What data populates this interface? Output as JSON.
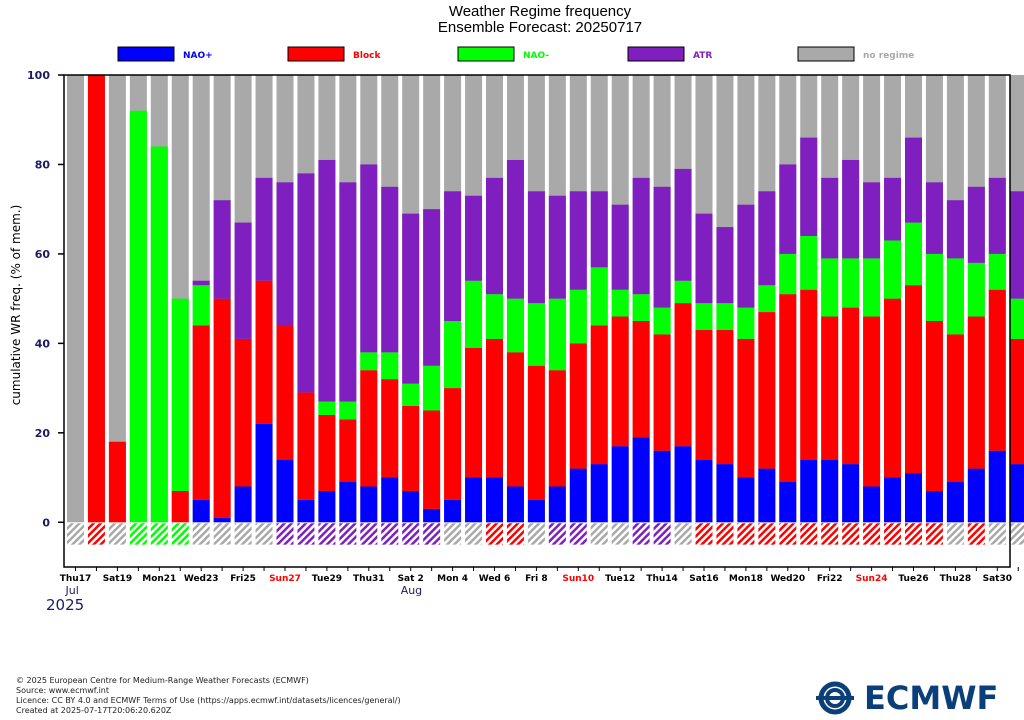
{
  "chart_data": {
    "type": "bar",
    "stacked": true,
    "title": "Weather Regime frequency",
    "subtitle": "Ensemble Forecast: 20250717",
    "ylabel": "cumulative WR freq. (% of mem.)",
    "ylim": [
      -10,
      100
    ],
    "yticks": [
      "0",
      "20",
      "40",
      "60",
      "80",
      "100"
    ],
    "ytick_values": [
      0,
      20,
      40,
      60,
      80,
      100
    ],
    "grid": false,
    "legend_position": "top",
    "series": [
      {
        "name": "NAO+",
        "color": "#0000ff"
      },
      {
        "name": "Block",
        "color": "#ff0000"
      },
      {
        "name": "NAO-",
        "color": "#00ff00"
      },
      {
        "name": "ATR",
        "color": "#7f1fbf"
      },
      {
        "name": "no regime",
        "color": "#a9a9a9"
      }
    ],
    "cumulative": {
      "NAO+": [
        0,
        0,
        0,
        0,
        0,
        0,
        5,
        1,
        8,
        22,
        14,
        5,
        7,
        9,
        8,
        10,
        7,
        3,
        5,
        10,
        10,
        8,
        5,
        8,
        12,
        13,
        17,
        19,
        16,
        17,
        14,
        13,
        10,
        12,
        9,
        14,
        14,
        13,
        8,
        10,
        11,
        7,
        9,
        12,
        16,
        13
      ],
      "Block": [
        0,
        100,
        18,
        0,
        0,
        7,
        44,
        50,
        41,
        54,
        44,
        29,
        24,
        23,
        34,
        32,
        26,
        25,
        30,
        39,
        41,
        38,
        35,
        34,
        40,
        44,
        46,
        45,
        42,
        49,
        43,
        43,
        41,
        47,
        51,
        52,
        46,
        48,
        46,
        50,
        53,
        45,
        42,
        46,
        52,
        41
      ],
      "NAO-": [
        0,
        100,
        18,
        92,
        84,
        50,
        53,
        50,
        41,
        54,
        44,
        29,
        27,
        27,
        38,
        38,
        31,
        35,
        45,
        54,
        51,
        50,
        49,
        50,
        52,
        57,
        52,
        51,
        48,
        54,
        49,
        49,
        48,
        53,
        60,
        64,
        59,
        59,
        59,
        63,
        67,
        60,
        59,
        58,
        60,
        50
      ],
      "ATR": [
        0,
        100,
        18,
        92,
        84,
        50,
        54,
        72,
        67,
        77,
        76,
        78,
        81,
        76,
        80,
        75,
        69,
        70,
        74,
        73,
        77,
        81,
        74,
        73,
        74,
        74,
        71,
        77,
        75,
        79,
        69,
        66,
        71,
        74,
        80,
        86,
        77,
        81,
        76,
        77,
        86,
        76,
        72,
        75,
        77,
        74
      ]
    },
    "dominant_regime": [
      "no regime",
      "Block",
      "no regime",
      "NAO-",
      "NAO-",
      "NAO-",
      "no regime",
      "no regime",
      "no regime",
      "no regime",
      "ATR",
      "ATR",
      "ATR",
      "ATR",
      "ATR",
      "ATR",
      "ATR",
      "ATR",
      "no regime",
      "no regime",
      "Block",
      "Block",
      "no regime",
      "ATR",
      "ATR",
      "no regime",
      "no regime",
      "ATR",
      "ATR",
      "no regime",
      "Block",
      "Block",
      "Block",
      "Block",
      "Block",
      "Block",
      "Block",
      "Block",
      "Block",
      "Block",
      "Block",
      "Block",
      "no regime",
      "Block",
      "no regime",
      "no regime"
    ],
    "x_day_labels": [
      {
        "index": 0,
        "text": "Thu17",
        "color": "#000000"
      },
      {
        "index": 2,
        "text": "Sat19",
        "color": "#000000"
      },
      {
        "index": 4,
        "text": "Mon21",
        "color": "#000000"
      },
      {
        "index": 6,
        "text": "Wed23",
        "color": "#000000"
      },
      {
        "index": 8,
        "text": "Fri25",
        "color": "#000000"
      },
      {
        "index": 10,
        "text": "Sun27",
        "color": "#ff0000"
      },
      {
        "index": 12,
        "text": "Tue29",
        "color": "#000000"
      },
      {
        "index": 14,
        "text": "Thu31",
        "color": "#000000"
      },
      {
        "index": 16,
        "text": "Sat 2",
        "color": "#000000"
      },
      {
        "index": 18,
        "text": "Mon 4",
        "color": "#000000"
      },
      {
        "index": 20,
        "text": "Wed 6",
        "color": "#000000"
      },
      {
        "index": 22,
        "text": "Fri 8",
        "color": "#000000"
      },
      {
        "index": 24,
        "text": "Sun10",
        "color": "#ff0000"
      },
      {
        "index": 26,
        "text": "Tue12",
        "color": "#000000"
      },
      {
        "index": 28,
        "text": "Thu14",
        "color": "#000000"
      },
      {
        "index": 30,
        "text": "Sat16",
        "color": "#000000"
      },
      {
        "index": 32,
        "text": "Mon18",
        "color": "#000000"
      },
      {
        "index": 34,
        "text": "Wed20",
        "color": "#000000"
      },
      {
        "index": 36,
        "text": "Fri22",
        "color": "#000000"
      },
      {
        "index": 38,
        "text": "Sun24",
        "color": "#ff0000"
      },
      {
        "index": 40,
        "text": "Tue26",
        "color": "#000000"
      },
      {
        "index": 42,
        "text": "Thu28",
        "color": "#000000"
      },
      {
        "index": 44,
        "text": "Sat30",
        "color": "#000000"
      }
    ],
    "x_month_labels": [
      {
        "index": 0,
        "text": "Jul"
      },
      {
        "index": 16,
        "text": "Aug"
      }
    ],
    "x_year_label": "2025"
  },
  "footer": {
    "copyright": "© 2025 European Centre for Medium-Range Weather Forecasts (ECMWF)",
    "source": "Source: www.ecmwf.int",
    "licence": "Licence: CC BY 4.0 and ECMWF Terms of Use (https://apps.ecmwf.int/datasets/licences/general/)",
    "created": "Created at 2025-07-17T20:06:20.620Z"
  },
  "logo": {
    "text": "ECMWF",
    "color": "#0a3f7a"
  }
}
